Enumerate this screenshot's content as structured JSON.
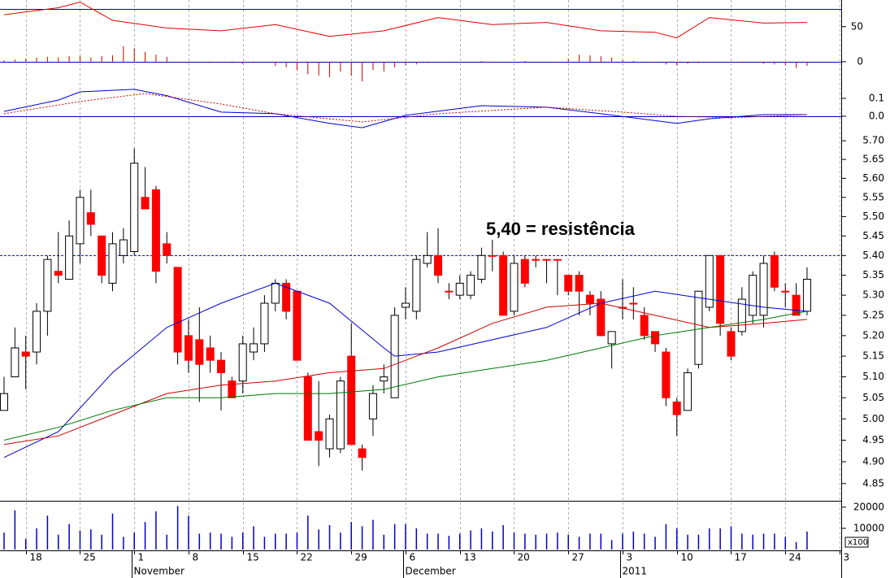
{
  "chart_data": [
    {
      "type": "line",
      "xlim": [
        -0.375,
        77.15
      ],
      "ylim": [
        -28,
        88
      ],
      "yticks": [
        0,
        50
      ],
      "ref_lines": [
        0,
        75
      ],
      "ref_color": "#0000cc",
      "series": [
        {
          "color": "#dd0000",
          "x": [
            0,
            5,
            7,
            10,
            15,
            20,
            25,
            30,
            35,
            40,
            45,
            50,
            55,
            60,
            62,
            65,
            70,
            74
          ],
          "values": [
            67,
            77,
            85,
            59,
            48,
            44,
            53,
            36,
            44,
            63,
            53,
            56,
            44,
            42,
            34,
            63,
            55,
            56
          ]
        },
        {
          "style": "bar",
          "color": "#cc0000",
          "x": [
            0,
            1,
            2,
            3,
            4,
            5,
            6,
            7,
            8,
            9,
            10,
            11,
            12,
            13,
            14,
            15,
            16,
            17,
            18,
            19,
            20,
            21,
            22,
            23,
            24,
            25,
            26,
            27,
            28,
            29,
            30,
            31,
            32,
            33,
            34,
            35,
            36,
            37,
            38,
            39,
            40,
            41,
            42,
            43,
            44,
            45,
            46,
            47,
            48,
            49,
            50,
            51,
            52,
            53,
            54,
            55,
            56,
            57,
            58,
            59,
            60,
            61,
            62,
            63,
            64,
            65,
            66,
            67,
            68,
            69,
            70,
            71,
            72,
            73,
            74
          ],
          "values": [
            2,
            3,
            4,
            6,
            7,
            6,
            8,
            8,
            6,
            8,
            9,
            22,
            19,
            14,
            10,
            7,
            -1,
            -2,
            -1,
            -2,
            -1,
            -2,
            -3,
            -2,
            -1,
            -6,
            -8,
            -12,
            -18,
            -20,
            -22,
            -14,
            -20,
            -28,
            -12,
            -14,
            -8,
            -5,
            -4,
            -2,
            -1,
            0,
            0,
            0,
            1,
            -1,
            -1,
            0,
            1,
            0,
            0,
            -1,
            4,
            10,
            9,
            8,
            6,
            2,
            1,
            0,
            -1,
            -4,
            -5,
            -3,
            -2,
            -1,
            0,
            -1,
            -2,
            -1,
            -3,
            -4,
            -5,
            -9,
            -6
          ]
        }
      ]
    },
    {
      "type": "line",
      "xlim": [
        -0.375,
        77.15
      ],
      "ylim": [
        -0.1,
        0.195
      ],
      "yticks": [
        0.1,
        {
          "value": 0,
          "label": "0.0"
        }
      ],
      "ref_lines": [
        0
      ],
      "ref_color": "#0000cc",
      "series": [
        {
          "color": "#0000cc",
          "x": [
            0,
            5,
            7,
            12,
            15,
            20,
            25,
            30,
            33,
            37,
            44,
            50,
            55,
            62,
            65,
            70,
            74
          ],
          "values": [
            0.027,
            0.09,
            0.136,
            0.15,
            0.115,
            0.023,
            0.014,
            -0.04,
            -0.064,
            0.005,
            0.059,
            0.05,
            0.014,
            -0.04,
            -0.014,
            0.009,
            0.009
          ]
        },
        {
          "color": "#cc0000",
          "dash": true,
          "x": [
            0,
            7,
            13,
            20,
            25,
            33,
            40,
            50,
            57,
            62,
            67,
            74
          ],
          "values": [
            0.014,
            0.082,
            0.127,
            0.068,
            0.014,
            -0.032,
            0.014,
            0.05,
            0.023,
            0,
            -0.009,
            0.009
          ]
        }
      ]
    },
    {
      "type": "candlestick",
      "log": true,
      "xlim": [
        -0.375,
        77.15
      ],
      "ylim": [
        4.82,
        5.72
      ],
      "yticks": [
        {
          "value": 5.7,
          "label": "5.70"
        },
        {
          "value": 5.65,
          "label": "5.65"
        },
        {
          "value": 5.6,
          "label": "5.60"
        },
        {
          "value": 5.55,
          "label": "5.55"
        },
        {
          "value": 5.5,
          "label": "5.50"
        },
        {
          "value": 5.45,
          "label": "5.45"
        },
        {
          "value": 5.4,
          "label": "5.40"
        },
        {
          "value": 5.35,
          "label": "5.35"
        },
        {
          "value": 5.3,
          "label": "5.30"
        },
        {
          "value": 5.25,
          "label": "5.25"
        },
        {
          "value": 5.2,
          "label": "5.20"
        },
        {
          "value": 5.15,
          "label": "5.15"
        },
        {
          "value": 5.1,
          "label": "5.10"
        },
        {
          "value": 5.05,
          "label": "5.05"
        },
        {
          "value": 5,
          "label": "5.00"
        },
        {
          "value": 4.95,
          "label": "4.95"
        },
        {
          "value": 4.9,
          "label": "4.90"
        },
        {
          "value": 4.85,
          "label": "4.85"
        }
      ],
      "up_color": "#ffffff",
      "down_color": "#ff0000",
      "annotation": "5,40 = resistência",
      "resistance": 5.4,
      "resistance_color": "#0000cc",
      "x": [
        0,
        1,
        2,
        3,
        4,
        5,
        6,
        7,
        8,
        9,
        10,
        11,
        12,
        13,
        14,
        15,
        16,
        17,
        18,
        19,
        20,
        21,
        22,
        23,
        24,
        25,
        26,
        27,
        28,
        29,
        30,
        31,
        32,
        33,
        34,
        35,
        36,
        37,
        38,
        39,
        40,
        41,
        42,
        43,
        44,
        45,
        46,
        47,
        48,
        49,
        50,
        51,
        52,
        53,
        54,
        55,
        56,
        57,
        58,
        59,
        60,
        61,
        62,
        63,
        64,
        65,
        66,
        67,
        68,
        69,
        70,
        71,
        72,
        73,
        74
      ],
      "open": [
        5.02,
        5.1,
        5.16,
        5.16,
        5.26,
        5.36,
        5.34,
        5.43,
        5.51,
        5.45,
        5.33,
        5.4,
        5.41,
        5.55,
        5.57,
        5.43,
        5.37,
        5.2,
        5.19,
        5.17,
        5.14,
        5.09,
        5.09,
        5.16,
        5.18,
        5.28,
        5.33,
        5.31,
        5.1,
        4.97,
        4.93,
        4.93,
        5.15,
        4.93,
        5.0,
        5.09,
        5.05,
        5.27,
        5.26,
        5.38,
        5.4,
        5.31,
        5.3,
        5.3,
        5.34,
        5.4,
        5.4,
        5.26,
        5.39,
        5.39,
        5.39,
        5.39,
        5.35,
        5.35,
        5.3,
        5.29,
        5.18,
        5.27,
        5.28,
        5.25,
        5.21,
        5.16,
        5.04,
        5.02,
        5.13,
        5.27,
        5.4,
        5.21,
        5.21,
        5.25,
        5.25,
        5.4,
        5.31,
        5.3,
        5.26
      ],
      "high": [
        5.1,
        5.22,
        5.2,
        5.28,
        5.4,
        5.46,
        5.49,
        5.57,
        5.57,
        5.45,
        5.46,
        5.47,
        5.68,
        5.63,
        5.58,
        5.46,
        5.37,
        5.24,
        5.27,
        5.2,
        5.16,
        5.1,
        5.2,
        5.22,
        5.3,
        5.34,
        5.34,
        5.31,
        5.11,
        5.09,
        5.01,
        5.1,
        5.23,
        4.94,
        5.08,
        5.13,
        5.27,
        5.32,
        5.4,
        5.46,
        5.47,
        5.33,
        5.35,
        5.36,
        5.42,
        5.44,
        5.41,
        5.4,
        5.4,
        5.4,
        5.39,
        5.39,
        5.35,
        5.36,
        5.31,
        5.31,
        5.21,
        5.34,
        5.32,
        5.27,
        5.21,
        5.17,
        5.05,
        5.12,
        5.31,
        5.4,
        5.4,
        5.22,
        5.32,
        5.36,
        5.4,
        5.41,
        5.33,
        5.33,
        5.37
      ],
      "low": [
        5.02,
        5.1,
        5.07,
        5.13,
        5.2,
        5.33,
        5.34,
        5.38,
        5.45,
        5.33,
        5.31,
        5.38,
        5.4,
        5.52,
        5.33,
        5.38,
        5.13,
        5.11,
        5.04,
        5.11,
        5.02,
        5.05,
        5.06,
        5.14,
        5.16,
        5.26,
        5.24,
        5.14,
        4.95,
        4.89,
        4.91,
        4.92,
        4.94,
        4.88,
        4.96,
        5.06,
        5.05,
        5.24,
        5.24,
        5.37,
        5.33,
        5.29,
        5.29,
        5.29,
        5.33,
        5.36,
        5.25,
        5.25,
        5.32,
        5.37,
        5.33,
        5.3,
        5.3,
        5.25,
        5.25,
        5.2,
        5.12,
        5.24,
        5.24,
        5.19,
        5.16,
        5.03,
        4.96,
        5.02,
        5.12,
        5.26,
        5.2,
        5.14,
        5.2,
        5.23,
        5.22,
        5.31,
        5.27,
        5.25,
        5.25
      ],
      "close": [
        5.06,
        5.17,
        5.15,
        5.26,
        5.39,
        5.35,
        5.45,
        5.55,
        5.48,
        5.35,
        5.43,
        5.44,
        5.64,
        5.52,
        5.36,
        5.4,
        5.16,
        5.14,
        5.13,
        5.14,
        5.11,
        5.05,
        5.18,
        5.18,
        5.28,
        5.33,
        5.26,
        5.14,
        4.95,
        4.95,
        5.0,
        5.09,
        4.94,
        4.91,
        5.06,
        5.1,
        5.25,
        5.28,
        5.39,
        5.4,
        5.35,
        5.31,
        5.33,
        5.35,
        5.4,
        5.4,
        5.25,
        5.38,
        5.33,
        5.39,
        5.39,
        5.39,
        5.31,
        5.31,
        5.28,
        5.2,
        5.21,
        5.27,
        5.28,
        5.2,
        5.18,
        5.05,
        5.01,
        5.11,
        5.31,
        5.4,
        5.23,
        5.15,
        5.29,
        5.35,
        5.38,
        5.32,
        5.31,
        5.25,
        5.34
      ],
      "series": [
        {
          "color": "#0000cc",
          "x": [
            0,
            5,
            10,
            15,
            20,
            25,
            30,
            35,
            36,
            40,
            45,
            50,
            55,
            60,
            65,
            70,
            74
          ],
          "values": [
            4.91,
            4.97,
            5.11,
            5.22,
            5.28,
            5.33,
            5.28,
            5.17,
            5.15,
            5.16,
            5.19,
            5.22,
            5.28,
            5.31,
            5.29,
            5.27,
            5.26
          ]
        },
        {
          "color": "#cc0000",
          "x": [
            0,
            5,
            10,
            15,
            20,
            25,
            30,
            35,
            40,
            45,
            50,
            55,
            60,
            65,
            70,
            74
          ],
          "values": [
            4.94,
            4.96,
            5.01,
            5.06,
            5.08,
            5.09,
            5.11,
            5.12,
            5.17,
            5.23,
            5.27,
            5.28,
            5.25,
            5.22,
            5.23,
            5.24
          ]
        },
        {
          "color": "#007700",
          "x": [
            0,
            5,
            10,
            15,
            20,
            25,
            30,
            35,
            40,
            45,
            50,
            55,
            60,
            65,
            70,
            74
          ],
          "values": [
            4.95,
            4.98,
            5.02,
            5.05,
            5.05,
            5.06,
            5.06,
            5.07,
            5.1,
            5.12,
            5.14,
            5.17,
            5.2,
            5.22,
            5.24,
            5.26
          ]
        }
      ]
    },
    {
      "type": "bar",
      "xlim": [
        -0.375,
        77.15
      ],
      "ylim": [
        0,
        23000
      ],
      "yticks": [
        20000,
        10000
      ],
      "unit_label": "x100",
      "color": "#0000cc",
      "x": [
        0,
        1,
        2,
        3,
        4,
        5,
        6,
        7,
        8,
        9,
        10,
        11,
        12,
        13,
        14,
        15,
        16,
        17,
        18,
        19,
        20,
        21,
        22,
        23,
        24,
        25,
        26,
        27,
        28,
        29,
        30,
        31,
        32,
        33,
        34,
        35,
        36,
        37,
        38,
        39,
        40,
        41,
        42,
        43,
        44,
        45,
        46,
        47,
        48,
        49,
        50,
        51,
        52,
        53,
        54,
        55,
        56,
        57,
        58,
        59,
        60,
        61,
        62,
        63,
        64,
        65,
        66,
        67,
        68,
        69,
        70,
        71,
        72,
        73,
        74
      ],
      "values": [
        8000,
        18500,
        5000,
        10000,
        16000,
        7000,
        12000,
        9000,
        9500,
        7000,
        17000,
        6000,
        8000,
        13000,
        18000,
        7000,
        20500,
        16000,
        7500,
        8000,
        7500,
        6000,
        8000,
        11000,
        6000,
        7500,
        7500,
        8000,
        16000,
        9500,
        11500,
        8000,
        13000,
        11000,
        14000,
        7000,
        12000,
        12000,
        10000,
        7500,
        7500,
        6500,
        7500,
        9000,
        10000,
        8500,
        11500,
        8000,
        7500,
        7000,
        7500,
        8000,
        7000,
        6000,
        7500,
        7500,
        4500,
        7500,
        8500,
        7500,
        6000,
        12000,
        10000,
        7000,
        7000,
        10000,
        10000,
        11000,
        7500,
        7000,
        7500,
        7500,
        6000,
        3500,
        8500
      ],
      "xticks": [
        {
          "value": 2,
          "label": "18"
        },
        {
          "value": 7,
          "label": "25"
        },
        {
          "value": 12,
          "label": "1"
        },
        {
          "value": 17,
          "label": "8"
        },
        {
          "value": 22,
          "label": "15"
        },
        {
          "value": 27,
          "label": "22"
        },
        {
          "value": 32,
          "label": "29"
        },
        {
          "value": 37,
          "label": "6"
        },
        {
          "value": 42,
          "label": "13"
        },
        {
          "value": 47,
          "label": "20"
        },
        {
          "value": 52,
          "label": "27"
        },
        {
          "value": 57,
          "label": "3"
        },
        {
          "value": 62,
          "label": "10"
        },
        {
          "value": 67,
          "label": "17"
        },
        {
          "value": 72,
          "label": "24"
        },
        {
          "value": 77,
          "label": "3"
        }
      ],
      "month_labels": [
        {
          "value": 12,
          "label": "November"
        },
        {
          "value": 37,
          "label": "December"
        },
        {
          "value": 57,
          "label": "2011"
        }
      ]
    }
  ]
}
